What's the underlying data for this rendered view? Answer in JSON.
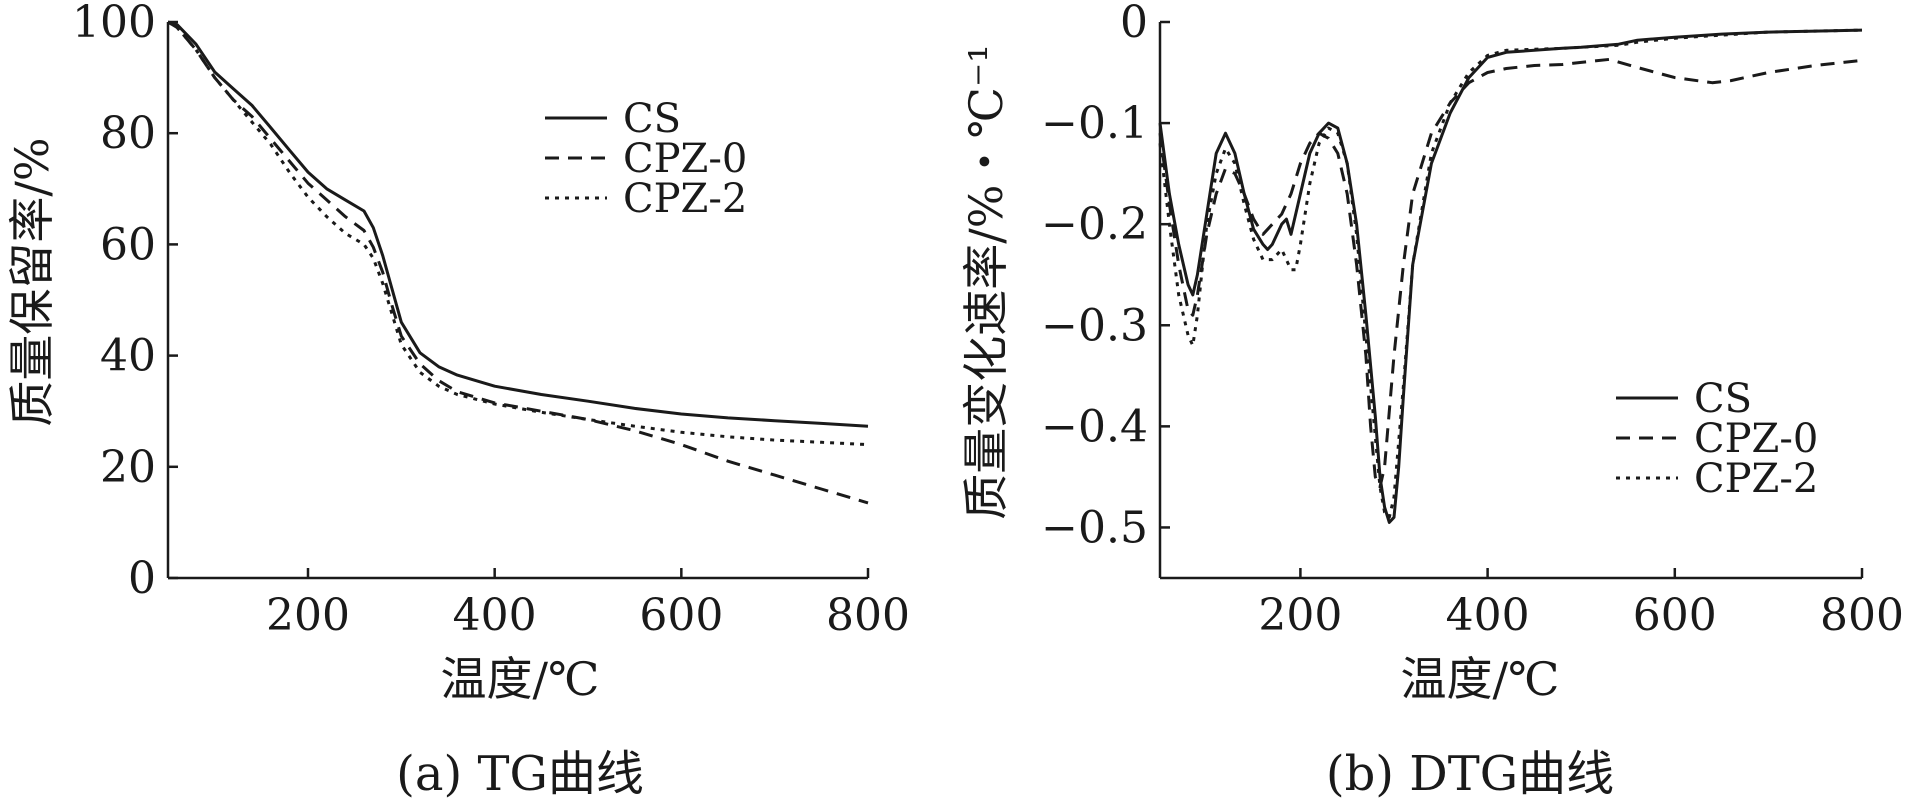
{
  "chart_data": [
    {
      "type": "line",
      "caption": "(a) TG曲线",
      "xlabel": "温度/℃",
      "ylabel": "质量保留率/%",
      "xlim": [
        50,
        800
      ],
      "ylim": [
        0,
        100
      ],
      "xticks": [
        200,
        400,
        600,
        800
      ],
      "yticks": [
        0,
        20,
        40,
        60,
        80,
        100
      ],
      "legend_position": "top-right",
      "series": [
        {
          "name": "CS",
          "dash": "solid",
          "x": [
            50,
            60,
            80,
            100,
            120,
            140,
            160,
            180,
            200,
            220,
            240,
            260,
            270,
            280,
            290,
            300,
            320,
            340,
            360,
            400,
            450,
            500,
            550,
            600,
            650,
            700,
            750,
            800
          ],
          "y": [
            100,
            99.5,
            96,
            91,
            88,
            85,
            81,
            77,
            73,
            70,
            68,
            66,
            63,
            58,
            52,
            46,
            40.5,
            38,
            36.5,
            34.5,
            33,
            31.8,
            30.5,
            29.5,
            28.8,
            28.3,
            27.8,
            27.3
          ]
        },
        {
          "name": "CPZ-0",
          "dash": "dashed",
          "x": [
            50,
            60,
            80,
            100,
            120,
            140,
            160,
            180,
            200,
            220,
            240,
            260,
            270,
            280,
            290,
            300,
            320,
            340,
            360,
            400,
            450,
            500,
            550,
            600,
            650,
            700,
            750,
            800
          ],
          "y": [
            100,
            99,
            95,
            90,
            86,
            83,
            79,
            75,
            71,
            68,
            65,
            62.5,
            59.5,
            55,
            49,
            43.5,
            38.5,
            35.5,
            33.5,
            31.5,
            30,
            28.5,
            26.5,
            24,
            21,
            18.5,
            16,
            13.5
          ]
        },
        {
          "name": "CPZ-2",
          "dash": "dotted",
          "x": [
            50,
            60,
            80,
            100,
            120,
            140,
            160,
            180,
            200,
            220,
            240,
            260,
            270,
            280,
            290,
            300,
            320,
            340,
            360,
            400,
            450,
            500,
            550,
            600,
            650,
            700,
            750,
            800
          ],
          "y": [
            100,
            99,
            95,
            90,
            86,
            82,
            78,
            73,
            68.5,
            65,
            62,
            60,
            57.5,
            53,
            47.5,
            42,
            37,
            34.5,
            33,
            31.3,
            29.8,
            28.5,
            27.3,
            26.2,
            25.4,
            24.8,
            24.4,
            24
          ]
        }
      ]
    },
    {
      "type": "line",
      "caption": "(b) DTG曲线",
      "xlabel": "温度/℃",
      "ylabel": "质量变化速率/%・℃⁻¹",
      "xlim": [
        50,
        800
      ],
      "ylim": [
        -0.55,
        0
      ],
      "xticks": [
        200,
        400,
        600,
        800
      ],
      "yticks": [
        0,
        -0.1,
        -0.2,
        -0.3,
        -0.4,
        -0.5
      ],
      "ytick_labels": [
        "0",
        "-0.1",
        "-0.2",
        "-0.3",
        "-0.4",
        "-0.5"
      ],
      "legend_position": "bottom-right",
      "series": [
        {
          "name": "CS",
          "dash": "solid",
          "x": [
            50,
            60,
            70,
            80,
            85,
            90,
            100,
            110,
            120,
            130,
            140,
            150,
            160,
            165,
            170,
            180,
            185,
            190,
            200,
            210,
            220,
            230,
            240,
            250,
            260,
            270,
            280,
            285,
            290,
            295,
            300,
            305,
            310,
            320,
            340,
            360,
            380,
            400,
            420,
            450,
            480,
            500,
            540,
            560,
            600,
            650,
            700,
            750,
            800
          ],
          "y": [
            -0.1,
            -0.17,
            -0.22,
            -0.26,
            -0.27,
            -0.25,
            -0.19,
            -0.13,
            -0.11,
            -0.13,
            -0.17,
            -0.205,
            -0.22,
            -0.225,
            -0.22,
            -0.2,
            -0.195,
            -0.21,
            -0.17,
            -0.13,
            -0.11,
            -0.1,
            -0.105,
            -0.14,
            -0.2,
            -0.29,
            -0.39,
            -0.45,
            -0.48,
            -0.495,
            -0.49,
            -0.44,
            -0.37,
            -0.24,
            -0.14,
            -0.09,
            -0.055,
            -0.035,
            -0.03,
            -0.028,
            -0.026,
            -0.025,
            -0.022,
            -0.018,
            -0.015,
            -0.012,
            -0.01,
            -0.009,
            -0.008
          ]
        },
        {
          "name": "CPZ-0",
          "dash": "dashed",
          "x": [
            50,
            60,
            70,
            80,
            85,
            90,
            100,
            110,
            120,
            130,
            140,
            150,
            160,
            170,
            175,
            180,
            190,
            200,
            210,
            220,
            230,
            240,
            250,
            260,
            270,
            275,
            280,
            285,
            290,
            300,
            310,
            320,
            340,
            360,
            380,
            400,
            420,
            450,
            480,
            500,
            530,
            560,
            600,
            640,
            660,
            700,
            750,
            800
          ],
          "y": [
            -0.11,
            -0.18,
            -0.24,
            -0.285,
            -0.29,
            -0.27,
            -0.21,
            -0.17,
            -0.145,
            -0.15,
            -0.17,
            -0.195,
            -0.21,
            -0.2,
            -0.195,
            -0.19,
            -0.17,
            -0.14,
            -0.12,
            -0.11,
            -0.115,
            -0.13,
            -0.17,
            -0.24,
            -0.33,
            -0.4,
            -0.45,
            -0.46,
            -0.44,
            -0.33,
            -0.24,
            -0.17,
            -0.11,
            -0.08,
            -0.06,
            -0.05,
            -0.046,
            -0.043,
            -0.042,
            -0.04,
            -0.037,
            -0.045,
            -0.055,
            -0.06,
            -0.058,
            -0.05,
            -0.043,
            -0.038
          ]
        },
        {
          "name": "CPZ-2",
          "dash": "dotted",
          "x": [
            50,
            60,
            70,
            80,
            85,
            90,
            100,
            110,
            120,
            130,
            140,
            150,
            160,
            170,
            180,
            190,
            195,
            200,
            210,
            220,
            230,
            240,
            250,
            260,
            270,
            280,
            285,
            290,
            295,
            300,
            310,
            320,
            340,
            360,
            380,
            400,
            420,
            450,
            480,
            500,
            540,
            560,
            600,
            650,
            700,
            750,
            800
          ],
          "y": [
            -0.12,
            -0.2,
            -0.27,
            -0.31,
            -0.32,
            -0.29,
            -0.2,
            -0.15,
            -0.125,
            -0.14,
            -0.18,
            -0.215,
            -0.235,
            -0.235,
            -0.225,
            -0.245,
            -0.245,
            -0.22,
            -0.16,
            -0.12,
            -0.105,
            -0.11,
            -0.14,
            -0.21,
            -0.31,
            -0.41,
            -0.46,
            -0.485,
            -0.49,
            -0.47,
            -0.36,
            -0.24,
            -0.13,
            -0.08,
            -0.05,
            -0.033,
            -0.028,
            -0.027,
            -0.026,
            -0.025,
            -0.023,
            -0.02,
            -0.016,
            -0.013,
            -0.01,
            -0.009,
            -0.008
          ]
        }
      ]
    }
  ]
}
